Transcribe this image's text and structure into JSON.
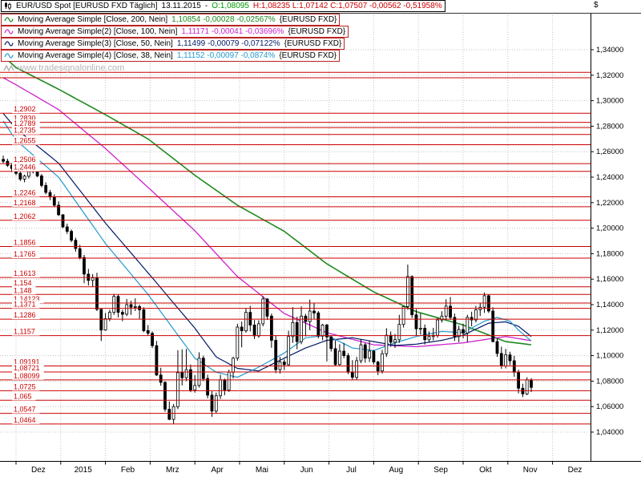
{
  "watermark": {
    "text": "www.tradesignalonline.com"
  },
  "colors": {
    "open": "#009900",
    "hlc": "#cc0000",
    "line_red": "#cc0000",
    "grid": "#c4c4c4",
    "axis_text": "#000000",
    "candle_up": "#ffffff",
    "candle_down": "#000000",
    "watermark": "#b5b5b5"
  },
  "legend": {
    "quote": {
      "title": "EUR/USD Spot [EURUSD FXD Täglich]",
      "date": "13.11.2015",
      "dash": "-",
      "open": "O:1,08095",
      "hlc": "H:1,08235 L:1,07142 C:1,07507 -0,00562 -0,51958%"
    },
    "indicators": [
      {
        "label": "Moving Average Simple [Close, 200, Nein]",
        "values": "1,10854 -0,00028 -0,02567%",
        "market": "{EURUSD FXD}"
      },
      {
        "label": "Moving Average Simple(2) [Close, 100, Nein]",
        "values": "1,11171 -0,00041 -0,03696%",
        "market": "{EURUSD FXD}"
      },
      {
        "label": "Moving Average Simple(3) [Close, 50, Nein]",
        "values": "1,11499 -0,00079 -0,07122%",
        "market": "{EURUSD FXD}"
      },
      {
        "label": "Moving Average Simple(4) [Close, 38, Nein]",
        "values": "1,11152 -0,00097 -0,0874%",
        "market": "{EURUSD FXD}"
      }
    ]
  },
  "chart_data": {
    "type": "candlestick",
    "instrument": "EUR/USD Spot",
    "symbol_feed": "EURUSD FXD",
    "timeframe": "Täglich",
    "last_date": "13.11.2015",
    "y_axis": {
      "symbol": "$",
      "ticks": [
        "1,34000",
        "1,32000",
        "1,30000",
        "1,28000",
        "1,26000",
        "1,24000",
        "1,22000",
        "1,20000",
        "1,18000",
        "1,16000",
        "1,14000",
        "1,12000",
        "1,10000",
        "1,08000",
        "1,06000",
        "1,04000"
      ]
    },
    "x_axis": {
      "labels": [
        "Dez",
        "2015",
        "Feb",
        "Mrz",
        "Apr",
        "Mai",
        "Jun",
        "Jul",
        "Aug",
        "Sep",
        "Okt",
        "Nov",
        "Dez"
      ],
      "boundaries": [
        3,
        13.5,
        24,
        34.5,
        45,
        55.5,
        66,
        76.5,
        87,
        97.5,
        108,
        118.5,
        129
      ]
    },
    "horizontal_lines": [
      {
        "label": "",
        "value": 1.3222
      },
      {
        "label": "",
        "value": 1.318
      },
      {
        "label": "1,2902",
        "value": 1.2902
      },
      {
        "label": "1,2830",
        "value": 1.283
      },
      {
        "label": "1,2789",
        "value": 1.2789
      },
      {
        "label": "1,2735",
        "value": 1.2735
      },
      {
        "label": "1,2655",
        "value": 1.2655
      },
      {
        "label": "1,2506",
        "value": 1.2506
      },
      {
        "label": "1,2446",
        "value": 1.2446
      },
      {
        "label": "1,2246",
        "value": 1.2246
      },
      {
        "label": "1,2168",
        "value": 1.2168
      },
      {
        "label": "1,2062",
        "value": 1.2062
      },
      {
        "label": "1,1856",
        "value": 1.1856
      },
      {
        "label": "1,1765",
        "value": 1.1765
      },
      {
        "label": "1,1613",
        "value": 1.1613
      },
      {
        "label": "1,154",
        "value": 1.154
      },
      {
        "label": "1,148",
        "value": 1.148
      },
      {
        "label": "1,14123",
        "value": 1.14123
      },
      {
        "label": "1,1371",
        "value": 1.1371
      },
      {
        "label": "1,1286",
        "value": 1.1286
      },
      {
        "label": "1,1157",
        "value": 1.1157
      },
      {
        "label": "1,09191",
        "value": 1.09191
      },
      {
        "label": "1,08721",
        "value": 1.08721
      },
      {
        "label": "1,08099",
        "value": 1.08099
      },
      {
        "label": "1,0725",
        "value": 1.0725
      },
      {
        "label": "1,065",
        "value": 1.065
      },
      {
        "label": "1,0547",
        "value": 1.0547
      },
      {
        "label": "1,0464",
        "value": 1.0464
      }
    ],
    "moving_averages": [
      {
        "name": "Moving Average Simple",
        "period": 200,
        "color": "#1f8a1f",
        "last": "1,10854",
        "points": [
          [
            0,
            1.335
          ],
          [
            3,
            1.326
          ],
          [
            13,
            1.309
          ],
          [
            24,
            1.289
          ],
          [
            34,
            1.27
          ],
          [
            45,
            1.2415
          ],
          [
            55,
            1.218
          ],
          [
            66,
            1.1975
          ],
          [
            76,
            1.172
          ],
          [
            87,
            1.15
          ],
          [
            97,
            1.1345
          ],
          [
            108,
            1.124
          ],
          [
            118,
            1.111
          ],
          [
            124,
            1.10854
          ]
        ]
      },
      {
        "name": "Moving Average Simple(2)",
        "period": 100,
        "color": "#cc22cc",
        "last": "1,11171",
        "points": [
          [
            0,
            1.318
          ],
          [
            3,
            1.3125
          ],
          [
            13,
            1.293
          ],
          [
            24,
            1.2625
          ],
          [
            34,
            1.232
          ],
          [
            45,
            1.198
          ],
          [
            55,
            1.162
          ],
          [
            66,
            1.133
          ],
          [
            76,
            1.118
          ],
          [
            87,
            1.1085
          ],
          [
            97,
            1.107
          ],
          [
            108,
            1.11
          ],
          [
            118,
            1.115
          ],
          [
            124,
            1.11171
          ]
        ]
      },
      {
        "name": "Moving Average Simple(3)",
        "period": 50,
        "color": "#001a66",
        "last": "1,11499",
        "points": [
          [
            0,
            1.29
          ],
          [
            3,
            1.278
          ],
          [
            13,
            1.251
          ],
          [
            24,
            1.204
          ],
          [
            34,
            1.165
          ],
          [
            45,
            1.1215
          ],
          [
            50,
            1.099
          ],
          [
            55,
            1.09
          ],
          [
            60,
            1.088
          ],
          [
            66,
            1.098
          ],
          [
            71,
            1.106
          ],
          [
            76,
            1.112
          ],
          [
            82,
            1.114
          ],
          [
            87,
            1.111
          ],
          [
            92,
            1.108
          ],
          [
            97,
            1.109
          ],
          [
            103,
            1.112
          ],
          [
            108,
            1.116
          ],
          [
            114,
            1.1255
          ],
          [
            118,
            1.1265
          ],
          [
            121,
            1.123
          ],
          [
            124,
            1.11499
          ]
        ]
      },
      {
        "name": "Moving Average Simple(4)",
        "period": 38,
        "color": "#2299cc",
        "last": "1,11152",
        "points": [
          [
            0,
            1.284
          ],
          [
            3,
            1.269
          ],
          [
            13,
            1.24
          ],
          [
            24,
            1.188
          ],
          [
            34,
            1.148
          ],
          [
            45,
            1.098
          ],
          [
            50,
            1.087
          ],
          [
            55,
            1.083
          ],
          [
            60,
            1.091
          ],
          [
            66,
            1.102
          ],
          [
            71,
            1.114
          ],
          [
            76,
            1.116
          ],
          [
            82,
            1.106
          ],
          [
            87,
            1.104
          ],
          [
            92,
            1.11
          ],
          [
            97,
            1.115
          ],
          [
            103,
            1.119
          ],
          [
            108,
            1.118
          ],
          [
            113,
            1.127
          ],
          [
            116,
            1.13
          ],
          [
            119,
            1.127
          ],
          [
            121,
            1.12
          ],
          [
            124,
            1.11152
          ]
        ]
      }
    ],
    "candles": [
      [
        1.254,
        1.2569,
        1.251,
        1.2525
      ],
      [
        1.2525,
        1.2545,
        1.248,
        1.2492
      ],
      [
        1.2492,
        1.251,
        1.244,
        1.2468
      ],
      [
        1.2468,
        1.2495,
        1.2415,
        1.243
      ],
      [
        1.243,
        1.2448,
        1.237,
        1.2385
      ],
      [
        1.2385,
        1.242,
        1.236,
        1.2408
      ],
      [
        1.2408,
        1.246,
        1.239,
        1.2445
      ],
      [
        1.2445,
        1.25,
        1.243,
        1.2475
      ],
      [
        1.2475,
        1.2485,
        1.24,
        1.241
      ],
      [
        1.241,
        1.2425,
        1.232,
        1.2335
      ],
      [
        1.2335,
        1.236,
        1.2265,
        1.228
      ],
      [
        1.228,
        1.23,
        1.222,
        1.2245
      ],
      [
        1.2245,
        1.2265,
        1.2165,
        1.218
      ],
      [
        1.218,
        1.221,
        1.2095,
        1.2105
      ],
      [
        1.2105,
        1.211,
        1.2,
        1.201
      ],
      [
        1.201,
        1.2035,
        1.1955,
        1.1975
      ],
      [
        1.1975,
        1.199,
        1.189,
        1.1905
      ],
      [
        1.1905,
        1.1925,
        1.1815,
        1.184
      ],
      [
        1.184,
        1.187,
        1.1755,
        1.177
      ],
      [
        1.177,
        1.179,
        1.1568,
        1.164
      ],
      [
        1.164,
        1.168,
        1.155,
        1.159
      ],
      [
        1.159,
        1.164,
        1.154,
        1.161
      ],
      [
        1.161,
        1.165,
        1.135,
        1.1363
      ],
      [
        1.1363,
        1.137,
        1.1115,
        1.1201
      ],
      [
        1.1201,
        1.1335,
        1.1195,
        1.129
      ],
      [
        1.129,
        1.136,
        1.127,
        1.134
      ],
      [
        1.134,
        1.1485,
        1.132,
        1.1465
      ],
      [
        1.1465,
        1.148,
        1.13,
        1.134
      ],
      [
        1.134,
        1.136,
        1.127,
        1.1325
      ],
      [
        1.1325,
        1.1445,
        1.131,
        1.14
      ],
      [
        1.14,
        1.143,
        1.132,
        1.138
      ],
      [
        1.138,
        1.145,
        1.135,
        1.1385
      ],
      [
        1.1385,
        1.14,
        1.129,
        1.136
      ],
      [
        1.136,
        1.138,
        1.1184,
        1.1196
      ],
      [
        1.1196,
        1.124,
        1.116,
        1.1175
      ],
      [
        1.1175,
        1.119,
        1.106,
        1.1078
      ],
      [
        1.1078,
        1.1115,
        1.084,
        1.0848
      ],
      [
        1.0848,
        1.0905,
        1.0765,
        1.079
      ],
      [
        1.079,
        1.08,
        1.056,
        1.058
      ],
      [
        1.058,
        1.064,
        1.0494,
        1.05
      ],
      [
        1.05,
        1.062,
        1.0464,
        1.06
      ],
      [
        1.06,
        1.1043,
        1.058,
        1.0867
      ],
      [
        1.0867,
        1.105,
        1.0767,
        1.0827
      ],
      [
        1.0827,
        1.1052,
        1.08,
        1.089
      ],
      [
        1.089,
        1.093,
        1.0713,
        1.073
      ],
      [
        1.073,
        1.0848,
        1.071,
        1.0766
      ],
      [
        1.0766,
        1.1026,
        1.075,
        1.098
      ],
      [
        1.098,
        1.1,
        1.08,
        1.082
      ],
      [
        1.082,
        1.085,
        1.0665,
        1.069
      ],
      [
        1.069,
        1.072,
        1.052,
        1.0565
      ],
      [
        1.0565,
        1.071,
        1.055,
        1.0685
      ],
      [
        1.0685,
        1.085,
        1.066,
        1.081
      ],
      [
        1.081,
        1.082,
        1.069,
        1.073
      ],
      [
        1.073,
        1.089,
        1.0715,
        1.087
      ],
      [
        1.087,
        1.099,
        1.082,
        1.098
      ],
      [
        1.098,
        1.125,
        1.096,
        1.1224
      ],
      [
        1.1224,
        1.1267,
        1.1065,
        1.1195
      ],
      [
        1.1195,
        1.1371,
        1.118,
        1.134
      ],
      [
        1.134,
        1.139,
        1.119,
        1.124
      ],
      [
        1.124,
        1.128,
        1.113,
        1.1155
      ],
      [
        1.1155,
        1.1278,
        1.114,
        1.125
      ],
      [
        1.125,
        1.1467,
        1.123,
        1.1445
      ],
      [
        1.1445,
        1.145,
        1.128,
        1.131
      ],
      [
        1.131,
        1.133,
        1.1062,
        1.112
      ],
      [
        1.112,
        1.116,
        1.0863,
        1.089
      ],
      [
        1.089,
        1.099,
        1.086,
        1.095
      ],
      [
        1.095,
        1.097,
        1.0887,
        1.0929
      ],
      [
        1.0929,
        1.1195,
        1.0915,
        1.115
      ],
      [
        1.115,
        1.138,
        1.11,
        1.126
      ],
      [
        1.126,
        1.1305,
        1.105,
        1.111
      ],
      [
        1.111,
        1.1387,
        1.109,
        1.131
      ],
      [
        1.131,
        1.1328,
        1.1151,
        1.1267
      ],
      [
        1.1267,
        1.144,
        1.12,
        1.135
      ],
      [
        1.135,
        1.141,
        1.129,
        1.1335
      ],
      [
        1.1335,
        1.135,
        1.1135,
        1.1153
      ],
      [
        1.1153,
        1.125,
        1.112,
        1.124
      ],
      [
        1.124,
        1.125,
        1.0955,
        1.1147
      ],
      [
        1.1147,
        1.116,
        1.1032,
        1.1055
      ],
      [
        1.1055,
        1.112,
        1.0916,
        1.093
      ],
      [
        1.093,
        1.109,
        1.092,
        1.1035
      ],
      [
        1.1035,
        1.11,
        1.098,
        1.1
      ],
      [
        1.1,
        1.102,
        1.0855,
        1.087
      ],
      [
        1.087,
        1.0965,
        1.0808,
        1.083
      ],
      [
        1.083,
        1.099,
        1.081,
        1.096
      ],
      [
        1.096,
        1.113,
        1.094,
        1.1085
      ],
      [
        1.1085,
        1.11,
        1.0945,
        1.098
      ],
      [
        1.098,
        1.1115,
        1.095,
        1.1035
      ],
      [
        1.1035,
        1.1045,
        1.093,
        1.095
      ],
      [
        1.095,
        1.096,
        1.0847,
        1.088
      ],
      [
        1.088,
        1.1045,
        1.086,
        1.1015
      ],
      [
        1.1015,
        1.1215,
        1.099,
        1.116
      ],
      [
        1.116,
        1.119,
        1.107,
        1.1105
      ],
      [
        1.1105,
        1.117,
        1.106,
        1.1125
      ],
      [
        1.1125,
        1.132,
        1.11,
        1.1245
      ],
      [
        1.1245,
        1.139,
        1.122,
        1.1385
      ],
      [
        1.1385,
        1.1714,
        1.136,
        1.162
      ],
      [
        1.162,
        1.163,
        1.1295,
        1.132
      ],
      [
        1.132,
        1.1365,
        1.1156,
        1.121
      ],
      [
        1.121,
        1.1332,
        1.1165,
        1.1215
      ],
      [
        1.1215,
        1.1244,
        1.1087,
        1.1125
      ],
      [
        1.1125,
        1.119,
        1.1105,
        1.115
      ],
      [
        1.115,
        1.1218,
        1.112,
        1.116
      ],
      [
        1.116,
        1.1296,
        1.114,
        1.128
      ],
      [
        1.128,
        1.1348,
        1.126,
        1.131
      ],
      [
        1.131,
        1.1442,
        1.128,
        1.1388
      ],
      [
        1.1388,
        1.146,
        1.128,
        1.13
      ],
      [
        1.13,
        1.133,
        1.1115,
        1.115
      ],
      [
        1.115,
        1.1235,
        1.1105,
        1.1205
      ],
      [
        1.1205,
        1.125,
        1.1135,
        1.1177
      ],
      [
        1.1177,
        1.132,
        1.1105,
        1.13
      ],
      [
        1.13,
        1.1345,
        1.123,
        1.128
      ],
      [
        1.128,
        1.139,
        1.126,
        1.136
      ],
      [
        1.136,
        1.141,
        1.131,
        1.138
      ],
      [
        1.138,
        1.1495,
        1.1335,
        1.147
      ],
      [
        1.147,
        1.148,
        1.1335,
        1.135
      ],
      [
        1.135,
        1.138,
        1.1105,
        1.111
      ],
      [
        1.111,
        1.1135,
        1.099,
        1.1017
      ],
      [
        1.1017,
        1.107,
        1.0897,
        1.092
      ],
      [
        1.092,
        1.1053,
        1.09,
        1.1006
      ],
      [
        1.1006,
        1.103,
        1.0925,
        1.096
      ],
      [
        1.096,
        1.0998,
        1.0834,
        1.087
      ],
      [
        1.087,
        1.089,
        1.0704,
        1.0744
      ],
      [
        1.0744,
        1.078,
        1.0674,
        1.07
      ],
      [
        1.07,
        1.083,
        1.069,
        1.081
      ],
      [
        1.08095,
        1.08235,
        1.07142,
        1.07507
      ]
    ]
  }
}
